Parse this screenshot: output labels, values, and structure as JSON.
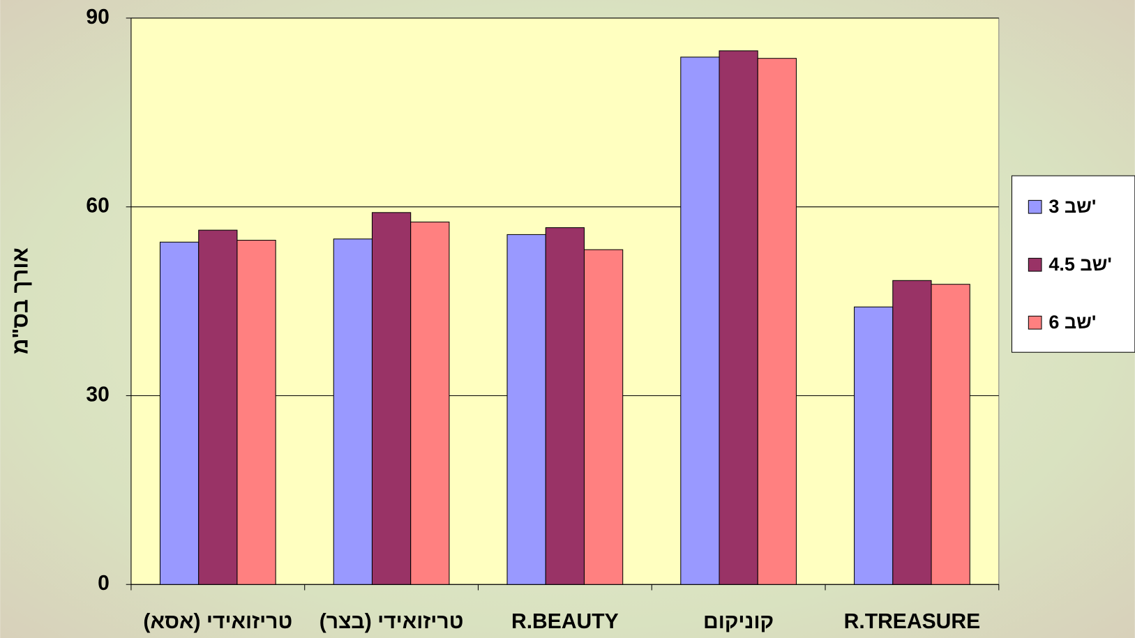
{
  "chart_data": {
    "type": "bar",
    "y_label": "אורך בס\"מ",
    "categories": [
      "טריזואידי (אסא)",
      "טריזואידי (בצר)",
      "R.BEAUTY",
      "קוניקום",
      "R.TREASURE"
    ],
    "series": [
      {
        "name": "3 שב'",
        "color": "#9999ff",
        "values": [
          54.4,
          54.9,
          55.6,
          83.8,
          44.1
        ]
      },
      {
        "name": "4.5 שב'",
        "color": "#993366",
        "values": [
          56.3,
          59.1,
          56.7,
          84.8,
          48.3
        ]
      },
      {
        "name": "6 שב'",
        "color": "#ff8080",
        "values": [
          54.7,
          57.6,
          53.2,
          83.6,
          47.7
        ]
      }
    ],
    "ylim": [
      0,
      90
    ],
    "yticks": [
      0,
      30,
      60,
      90
    ],
    "grid": true,
    "legend": "right"
  }
}
